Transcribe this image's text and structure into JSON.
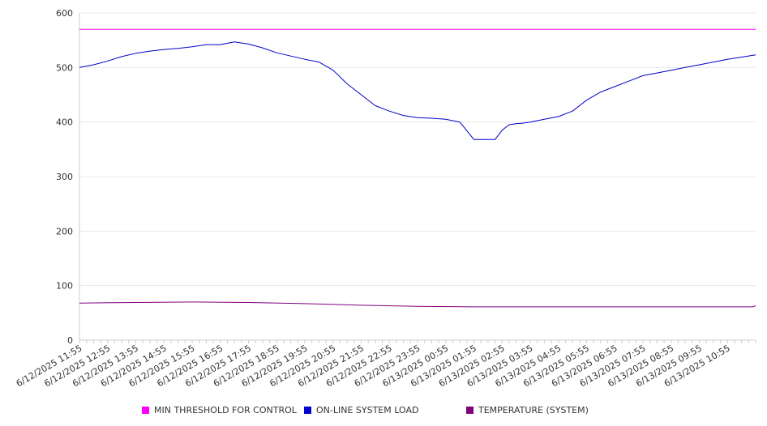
{
  "chart_data": {
    "type": "line",
    "title": "",
    "xlabel": "",
    "ylabel": "",
    "ylim": [
      0,
      600
    ],
    "y_ticks": [
      0,
      100,
      200,
      300,
      400,
      500,
      600
    ],
    "y_tick_labels": [
      "0",
      "100",
      "200",
      "300",
      "400",
      "500",
      "600"
    ],
    "x_tick_labels": [
      "6/12/2025 11:55",
      "6/12/2025 12:55",
      "6/12/2025 13:55",
      "6/12/2025 14:55",
      "6/12/2025 15:55",
      "6/12/2025 16:55",
      "6/12/2025 17:55",
      "6/12/2025 18:55",
      "6/12/2025 19:55",
      "6/12/2025 20:55",
      "6/12/2025 21:55",
      "6/12/2025 22:55",
      "6/12/2025 23:55",
      "6/13/2025 00:55",
      "6/13/2025 01:55",
      "6/13/2025 02:55",
      "6/13/2025 03:55",
      "6/13/2025 04:55",
      "6/13/2025 05:55",
      "6/13/2025 06:55",
      "6/13/2025 07:55",
      "6/13/2025 08:55",
      "6/13/2025 09:55",
      "6/13/2025 10:55"
    ],
    "x_hours": [
      0,
      24
    ],
    "grid": true,
    "legend_position": "bottom",
    "series": [
      {
        "name": "MIN THRESHOLD FOR CONTROL",
        "color": "#ff00ff",
        "x": [
          0,
          24
        ],
        "values": [
          570,
          570
        ]
      },
      {
        "name": "ON-LINE SYSTEM LOAD",
        "color": "#0000cc",
        "x": [
          0,
          0.5,
          1,
          1.5,
          2,
          2.5,
          3,
          3.5,
          4,
          4.5,
          5,
          5.5,
          6,
          6.5,
          7,
          7.5,
          8,
          8.5,
          9,
          9.5,
          10,
          10.5,
          11,
          11.5,
          12,
          12.5,
          13,
          13.5,
          14,
          14.5,
          14.75,
          15,
          15.25,
          15.5,
          15.75,
          16,
          16.5,
          17,
          17.5,
          18,
          18.5,
          19,
          19.5,
          20,
          20.5,
          21,
          21.5,
          22,
          22.5,
          23,
          23.5,
          24
        ],
        "values": [
          500,
          505,
          512,
          520,
          526,
          530,
          533,
          535,
          538,
          542,
          542,
          547,
          543,
          536,
          527,
          521,
          515,
          510,
          495,
          470,
          450,
          430,
          420,
          412,
          408,
          407,
          405,
          400,
          368,
          368,
          368,
          385,
          395,
          397,
          398,
          400,
          405,
          410,
          420,
          440,
          455,
          465,
          475,
          485,
          490,
          495,
          500,
          505,
          510,
          515,
          519,
          523
        ]
      },
      {
        "name": "TEMPERATURE (SYSTEM)",
        "color": "#800080",
        "x": [
          0,
          2,
          4,
          6,
          8,
          10,
          12,
          14,
          16,
          18,
          20,
          22,
          23.9,
          24
        ],
        "values": [
          68,
          69,
          70,
          69,
          67,
          64,
          62,
          61,
          61,
          61,
          61,
          61,
          61,
          63
        ]
      }
    ]
  }
}
